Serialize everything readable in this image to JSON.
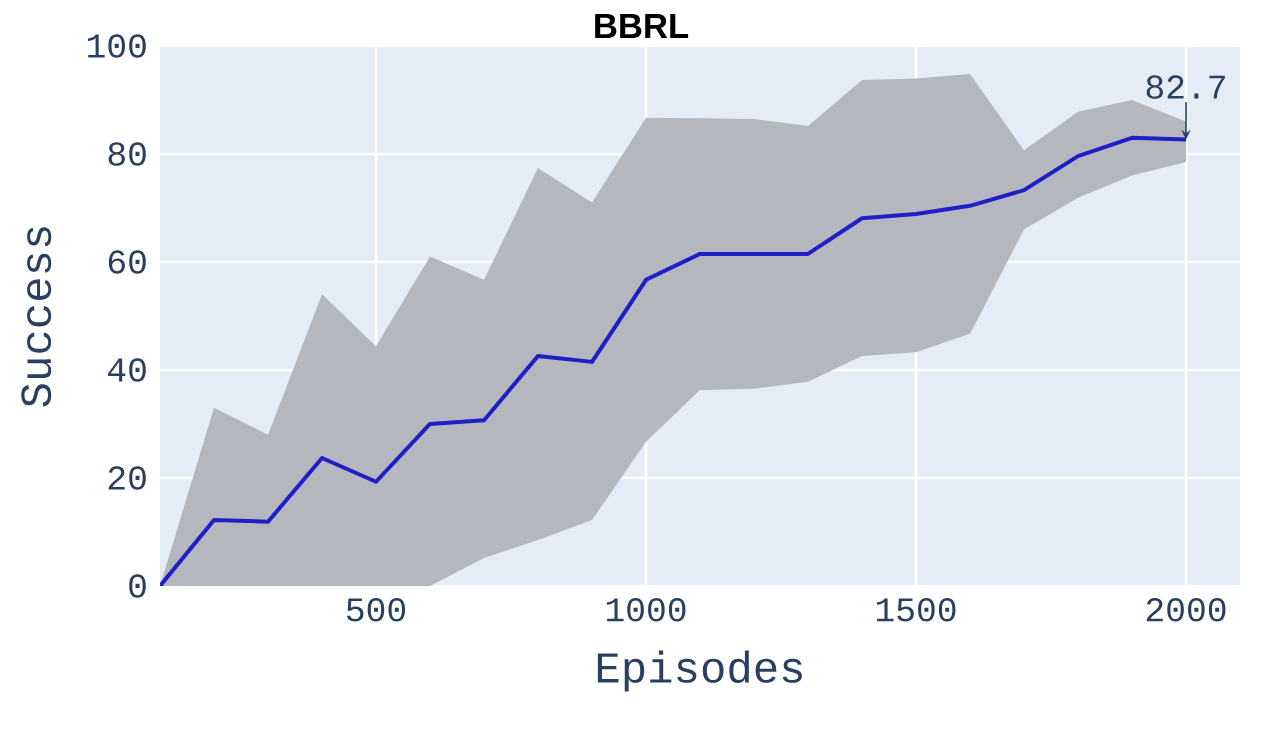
{
  "chart_data": {
    "type": "line",
    "title": "BBRL",
    "xlabel": "Episodes",
    "ylabel": "Success",
    "x": [
      100,
      200,
      300,
      400,
      500,
      600,
      700,
      800,
      900,
      1000,
      1100,
      1200,
      1300,
      1400,
      1500,
      1600,
      1700,
      1800,
      1900,
      2000
    ],
    "series": [
      {
        "color": "#1f1fc8",
        "values": [
          0,
          12.2,
          11.9,
          23.7,
          19.3,
          30,
          30.7,
          42.6,
          41.5,
          56.7,
          61.5,
          61.5,
          61.5,
          68.1,
          68.9,
          70.4,
          73.3,
          79.6,
          83,
          82.7
        ],
        "lower": [
          0,
          0,
          0,
          0,
          0,
          0,
          5.2,
          8.5,
          12.2,
          26.7,
          36.3,
          36.5,
          37.8,
          42.6,
          43.3,
          46.7,
          66,
          71.9,
          76,
          78.5
        ],
        "upper": [
          0,
          33,
          28,
          54,
          44.4,
          61,
          56.7,
          77.4,
          71,
          86.7,
          86.6,
          86.5,
          85.2,
          93.7,
          94,
          94.8,
          80.7,
          87.8,
          90,
          86
        ]
      }
    ],
    "xlim": [
      100,
      2100
    ],
    "ylim": [
      0,
      100
    ],
    "xticks": [
      500,
      1000,
      1500,
      2000
    ],
    "yticks": [
      0,
      20,
      40,
      60,
      80,
      100
    ],
    "grid": true,
    "annotations": [
      {
        "text": "82.7",
        "x": 2000,
        "y": 82.7
      }
    ]
  }
}
